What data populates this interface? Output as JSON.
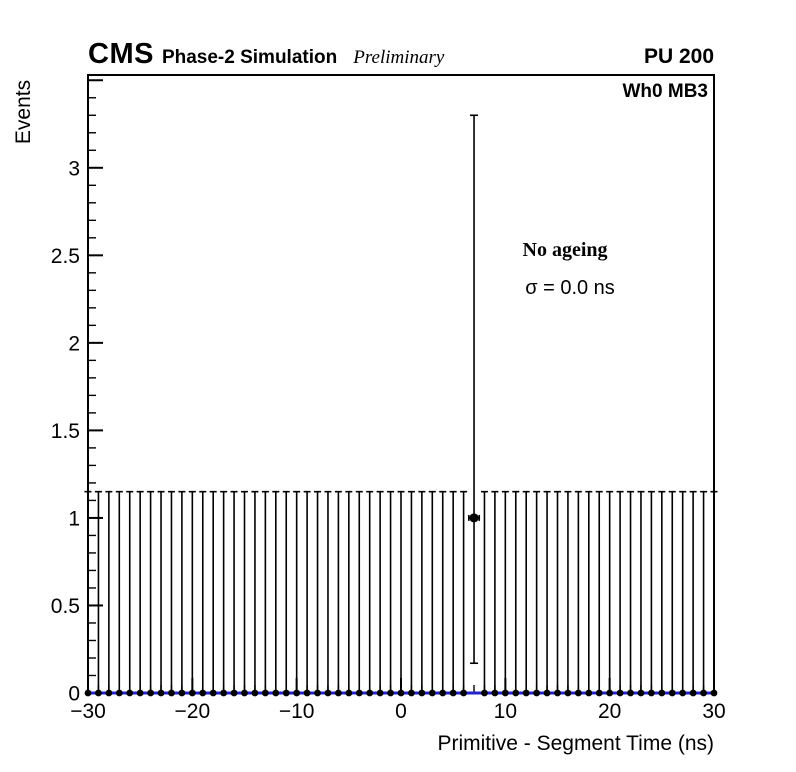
{
  "header": {
    "experiment": "CMS",
    "simulation_label": "Phase-2 Simulation",
    "preliminary_label": "Preliminary",
    "pileup_label": "PU 200"
  },
  "plot_labels": {
    "chamber": "Wh0 MB3",
    "ageing": "No ageing",
    "sigma": "σ = 0.0 ns"
  },
  "chart_data": {
    "type": "scatter",
    "title": "",
    "xlabel": "Primitive - Segment Time (ns)",
    "ylabel": "Events",
    "xlim": [
      -30,
      30
    ],
    "ylim": [
      0,
      3.53
    ],
    "grid": false,
    "x_major_ticks": [
      -30,
      -20,
      -10,
      0,
      10,
      20,
      30
    ],
    "x_tick_labels": [
      "−30",
      "−20",
      "−10",
      "0",
      "10",
      "20",
      "30"
    ],
    "x_minor_step": 1,
    "y_major_ticks": [
      0,
      0.5,
      1,
      1.5,
      2,
      2.5,
      3
    ],
    "y_tick_labels": [
      "0",
      "0.5",
      "1",
      "1.5",
      "2",
      "2.5",
      "3"
    ],
    "y_minor_step": 0.1,
    "zero_line_color": "#2222cc",
    "marker_color": "#000000",
    "error_bar_color": "#000000",
    "empty_bins": {
      "comment_visible_content_only": "markers at y=0 with Poisson upper error bars for empty 1 ns bins",
      "x_start": -30,
      "x_end": 30,
      "step": 1,
      "exclude_x": [
        7
      ],
      "y": 0,
      "yerr_up": 1.15
    },
    "data_points": [
      {
        "x": 7,
        "y": 1,
        "yerr_up": 2.3,
        "yerr_low": 0.83,
        "xerr": 0.5
      }
    ]
  }
}
